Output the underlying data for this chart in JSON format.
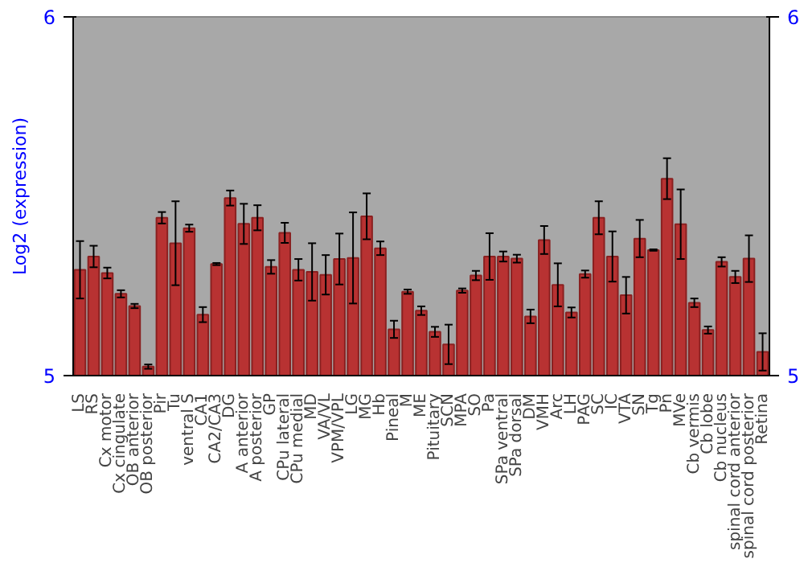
{
  "chart_data": {
    "type": "bar",
    "ylabel": "Log2 (expression)",
    "categories": [
      "LS",
      "RS",
      "Cx motor",
      "Cx cingulate",
      "OB anterior",
      "OB posterior",
      "Pir",
      "Tu",
      "ventral S",
      "CA1",
      "CA2/CA3",
      "DG",
      "A anterior",
      "A posterior",
      "GP",
      "CPu lateral",
      "CPu medial",
      "MD",
      "VA/VL",
      "VPM/VPL",
      "LG",
      "MG",
      "Hb",
      "Pineal",
      "M",
      "ME",
      "Pituitary",
      "SCN",
      "MPA",
      "SO",
      "Pa",
      "SPa ventral",
      "SPa dorsal",
      "DM",
      "VMH",
      "Arc",
      "LH",
      "PAG",
      "SC",
      "IC",
      "VTA",
      "SN",
      "Tg",
      "Pn",
      "MVe",
      "Cb vermis",
      "Cb lobe",
      "Cb nucleus",
      "spinal cord anterior",
      "spinal cord posterior",
      "Retina"
    ],
    "values": [
      5.295,
      5.332,
      5.286,
      5.228,
      5.194,
      5.025,
      5.44,
      5.369,
      5.411,
      5.17,
      5.311,
      5.495,
      5.423,
      5.44,
      5.303,
      5.398,
      5.295,
      5.289,
      5.281,
      5.325,
      5.328,
      5.444,
      5.355,
      5.129,
      5.234,
      5.181,
      5.122,
      5.087,
      5.237,
      5.279,
      5.332,
      5.332,
      5.326,
      5.165,
      5.378,
      5.253,
      5.176,
      5.283,
      5.44,
      5.332,
      5.224,
      5.382,
      5.35,
      5.549,
      5.422,
      5.203,
      5.127,
      5.317,
      5.275,
      5.326,
      5.066
    ],
    "errors": [
      0.08,
      0.03,
      0.015,
      0.01,
      0.006,
      0.006,
      0.016,
      0.117,
      0.01,
      0.021,
      0.003,
      0.021,
      0.056,
      0.035,
      0.019,
      0.028,
      0.03,
      0.08,
      0.055,
      0.071,
      0.127,
      0.064,
      0.019,
      0.024,
      0.006,
      0.012,
      0.014,
      0.055,
      0.006,
      0.013,
      0.065,
      0.014,
      0.011,
      0.019,
      0.039,
      0.06,
      0.014,
      0.01,
      0.046,
      0.07,
      0.051,
      0.052,
      0.002,
      0.057,
      0.097,
      0.012,
      0.01,
      0.013,
      0.017,
      0.065,
      0.052
    ],
    "color": "#b83232",
    "ylim": [
      5,
      6
    ],
    "yticks": [
      5,
      6
    ],
    "y2lim": [
      5,
      6
    ],
    "y2ticks": [
      5,
      6
    ],
    "grid": false
  }
}
